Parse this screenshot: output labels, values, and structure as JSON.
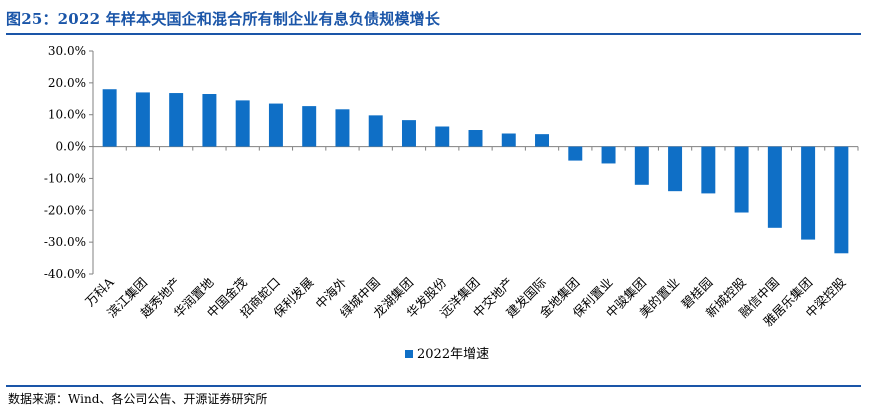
{
  "figure": {
    "title": "图25：2022 年样本央国企和混合所有制企业有息负债规模增长",
    "source": "数据来源：Wind、各公司公告、开源证券研究所"
  },
  "colors": {
    "bar": "#0f6fc6",
    "accent": "#1a55a8"
  },
  "chart_data": {
    "type": "bar",
    "categories": [
      "万科A",
      "滨江集团",
      "越秀地产",
      "华润置地",
      "中国金茂",
      "招商蛇口",
      "保利发展",
      "中海外",
      "绿城中国",
      "龙湖集团",
      "华发股份",
      "远洋集团",
      "中交地产",
      "建发国际",
      "金地集团",
      "保利置业",
      "中骏集团",
      "美的置业",
      "碧桂园",
      "新城控股",
      "融信中国",
      "雅居乐集团",
      "中梁控股"
    ],
    "series": [
      {
        "name": "2022年增速",
        "values": [
          18.0,
          17.0,
          16.8,
          16.5,
          14.5,
          13.5,
          12.7,
          11.7,
          9.8,
          8.3,
          6.3,
          5.2,
          4.1,
          3.9,
          -4.4,
          -5.3,
          -12.0,
          -14.0,
          -14.7,
          -20.7,
          -25.5,
          -29.2,
          -33.5
        ]
      }
    ],
    "ylim": [
      -40,
      30
    ],
    "yticks": [
      30,
      20,
      10,
      0,
      -10,
      -20,
      -30,
      -40
    ],
    "ytick_labels": [
      "30.0%",
      "20.0%",
      "10.0%",
      "0.0%",
      "-10.0%",
      "-20.0%",
      "-30.0%",
      "-40.0%"
    ],
    "xlabel": "",
    "ylabel": "",
    "grid": false,
    "legend_position": "bottom-center"
  }
}
